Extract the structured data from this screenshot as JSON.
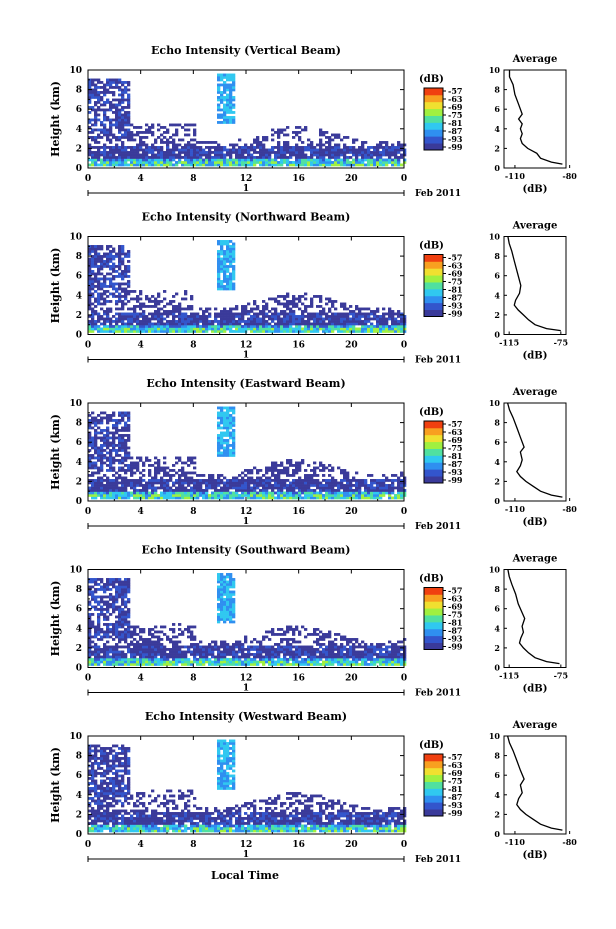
{
  "figure": {
    "date_label": "Feb 2011",
    "xlabel_bottom": "Local Time",
    "ylabel": "Height (km)",
    "colorbar_unit": "(dB)",
    "colorbar_ticks": [
      "-57",
      "-63",
      "-69",
      "-75",
      "-81",
      "-87",
      "-93",
      "-99"
    ],
    "avg_title": "Average",
    "avg_xlabel": "(dB)",
    "colors": {
      "colormap": [
        "#3a3a9a",
        "#3355cc",
        "#2f8ff0",
        "#30c8f0",
        "#50e0a0",
        "#a0f040",
        "#f0e030",
        "#f8a020",
        "#f04010"
      ]
    }
  },
  "chart_data": [
    {
      "type": "heatmap",
      "title": "Echo Intensity (Vertical Beam)",
      "xlabel": "",
      "ylabel": "Height (km)",
      "xlim": [
        0,
        24
      ],
      "ylim": [
        0,
        10
      ],
      "x_ticks": [
        "0",
        "4",
        "8",
        "12",
        "16",
        "20",
        "0"
      ],
      "y_ticks": [
        "0",
        "2",
        "4",
        "6",
        "8",
        "10"
      ],
      "date_marker": "1",
      "colorbar": {
        "unit": "dB",
        "range": [
          -99,
          -57
        ],
        "ticks": [
          "-57",
          "-63",
          "-69",
          "-75",
          "-81",
          "-87",
          "-93",
          "-99"
        ]
      },
      "average_profile": {
        "title": "Average",
        "xlabel": "(dB)",
        "xlim": [
          -116,
          -82
        ],
        "x_ticks": [
          "-110",
          "-80"
        ],
        "y_ticks": [
          "0",
          "2",
          "4",
          "6",
          "8",
          "10"
        ],
        "x": [
          -84,
          -90,
          -96,
          -98,
          -103,
          -106,
          -107,
          -106,
          -107,
          -106,
          -108,
          -106,
          -108,
          -110,
          -111,
          -113,
          -113
        ],
        "y": [
          0.4,
          0.6,
          1.0,
          1.5,
          2.0,
          2.5,
          3.0,
          3.5,
          4.0,
          4.5,
          5.0,
          5.5,
          6.5,
          7.5,
          8.5,
          9.3,
          10.0
        ]
      }
    },
    {
      "type": "heatmap",
      "title": "Echo Intensity (Northward Beam)",
      "xlabel": "",
      "ylabel": "Height (km)",
      "xlim": [
        0,
        24
      ],
      "ylim": [
        0,
        10
      ],
      "x_ticks": [
        "0",
        "4",
        "8",
        "12",
        "16",
        "20",
        "0"
      ],
      "y_ticks": [
        "0",
        "2",
        "4",
        "6",
        "8",
        "10"
      ],
      "date_marker": "1",
      "colorbar": {
        "unit": "dB",
        "range": [
          -99,
          -57
        ],
        "ticks": [
          "-57",
          "-63",
          "-69",
          "-75",
          "-81",
          "-87",
          "-93",
          "-99"
        ]
      },
      "average_profile": {
        "title": "Average",
        "xlabel": "(dB)",
        "xlim": [
          -119,
          -71
        ],
        "x_ticks": [
          "-115",
          "-75"
        ],
        "y_ticks": [
          "0",
          "2",
          "4",
          "6",
          "8",
          "10"
        ],
        "x": [
          -75,
          -86,
          -95,
          -100,
          -104,
          -108,
          -111,
          -110,
          -107,
          -106,
          -107,
          -109,
          -111,
          -113,
          -115,
          -116
        ],
        "y": [
          0.4,
          0.6,
          1.0,
          1.5,
          2.0,
          2.5,
          3.0,
          3.5,
          4.2,
          5.0,
          5.5,
          6.5,
          7.5,
          8.5,
          9.3,
          10.0
        ]
      }
    },
    {
      "type": "heatmap",
      "title": "Echo Intensity (Eastward Beam)",
      "xlabel": "",
      "ylabel": "Height (km)",
      "xlim": [
        0,
        24
      ],
      "ylim": [
        0,
        10
      ],
      "x_ticks": [
        "0",
        "4",
        "8",
        "12",
        "16",
        "20",
        "0"
      ],
      "y_ticks": [
        "0",
        "2",
        "4",
        "6",
        "8",
        "10"
      ],
      "date_marker": "1",
      "colorbar": {
        "unit": "dB",
        "range": [
          -99,
          -57
        ],
        "ticks": [
          "-57",
          "-63",
          "-69",
          "-75",
          "-81",
          "-87",
          "-93",
          "-99"
        ]
      },
      "average_profile": {
        "title": "Average",
        "xlabel": "(dB)",
        "xlim": [
          -116,
          -82
        ],
        "x_ticks": [
          "-110",
          "-80"
        ],
        "y_ticks": [
          "0",
          "2",
          "4",
          "6",
          "8",
          "10"
        ],
        "x": [
          -84,
          -90,
          -96,
          -100,
          -104,
          -107,
          -109,
          -107,
          -106,
          -107,
          -105,
          -107,
          -109,
          -111,
          -113,
          -114
        ],
        "y": [
          0.4,
          0.6,
          1.0,
          1.5,
          2.0,
          2.5,
          3.0,
          3.6,
          4.2,
          5.0,
          5.5,
          6.5,
          7.5,
          8.5,
          9.3,
          10.0
        ]
      }
    },
    {
      "type": "heatmap",
      "title": "Echo Intensity (Southward Beam)",
      "xlabel": "",
      "ylabel": "Height (km)",
      "xlim": [
        0,
        24
      ],
      "ylim": [
        0,
        10
      ],
      "x_ticks": [
        "0",
        "4",
        "8",
        "12",
        "16",
        "20",
        "0"
      ],
      "y_ticks": [
        "0",
        "2",
        "4",
        "6",
        "8",
        "10"
      ],
      "date_marker": "1",
      "colorbar": {
        "unit": "dB",
        "range": [
          -99,
          -57
        ],
        "ticks": [
          "-57",
          "-63",
          "-69",
          "-75",
          "-81",
          "-87",
          "-93",
          "-99"
        ]
      },
      "average_profile": {
        "title": "Average",
        "xlabel": "(dB)",
        "xlim": [
          -119,
          -71
        ],
        "x_ticks": [
          "-115",
          "-75"
        ],
        "y_ticks": [
          "0",
          "2",
          "4",
          "6",
          "8",
          "10"
        ],
        "x": [
          -76,
          -86,
          -95,
          -100,
          -104,
          -107,
          -106,
          -104,
          -105,
          -103,
          -105,
          -108,
          -110,
          -113,
          -115,
          -116
        ],
        "y": [
          0.4,
          0.6,
          1.0,
          1.5,
          2.0,
          2.5,
          3.0,
          3.6,
          4.2,
          5.0,
          5.6,
          6.5,
          7.5,
          8.5,
          9.3,
          10.0
        ]
      }
    },
    {
      "type": "heatmap",
      "title": "Echo Intensity (Westward Beam)",
      "xlabel": "Local Time",
      "ylabel": "Height (km)",
      "xlim": [
        0,
        24
      ],
      "ylim": [
        0,
        10
      ],
      "x_ticks": [
        "0",
        "4",
        "8",
        "12",
        "16",
        "20",
        "0"
      ],
      "y_ticks": [
        "0",
        "2",
        "4",
        "6",
        "8",
        "10"
      ],
      "date_marker": "1",
      "colorbar": {
        "unit": "dB",
        "range": [
          -99,
          -57
        ],
        "ticks": [
          "-57",
          "-63",
          "-69",
          "-75",
          "-81",
          "-87",
          "-93",
          "-99"
        ]
      },
      "average_profile": {
        "title": "Average",
        "xlabel": "(dB)",
        "xlim": [
          -116,
          -82
        ],
        "x_ticks": [
          "-110",
          "-80"
        ],
        "y_ticks": [
          "0",
          "2",
          "4",
          "6",
          "8",
          "10"
        ],
        "x": [
          -84,
          -90,
          -96,
          -100,
          -104,
          -107,
          -109,
          -108,
          -106,
          -107,
          -105,
          -107,
          -109,
          -111,
          -113,
          -114
        ],
        "y": [
          0.4,
          0.6,
          1.0,
          1.5,
          2.0,
          2.5,
          3.0,
          3.6,
          4.2,
          5.0,
          5.6,
          6.5,
          7.5,
          8.5,
          9.3,
          10.0
        ]
      }
    }
  ]
}
